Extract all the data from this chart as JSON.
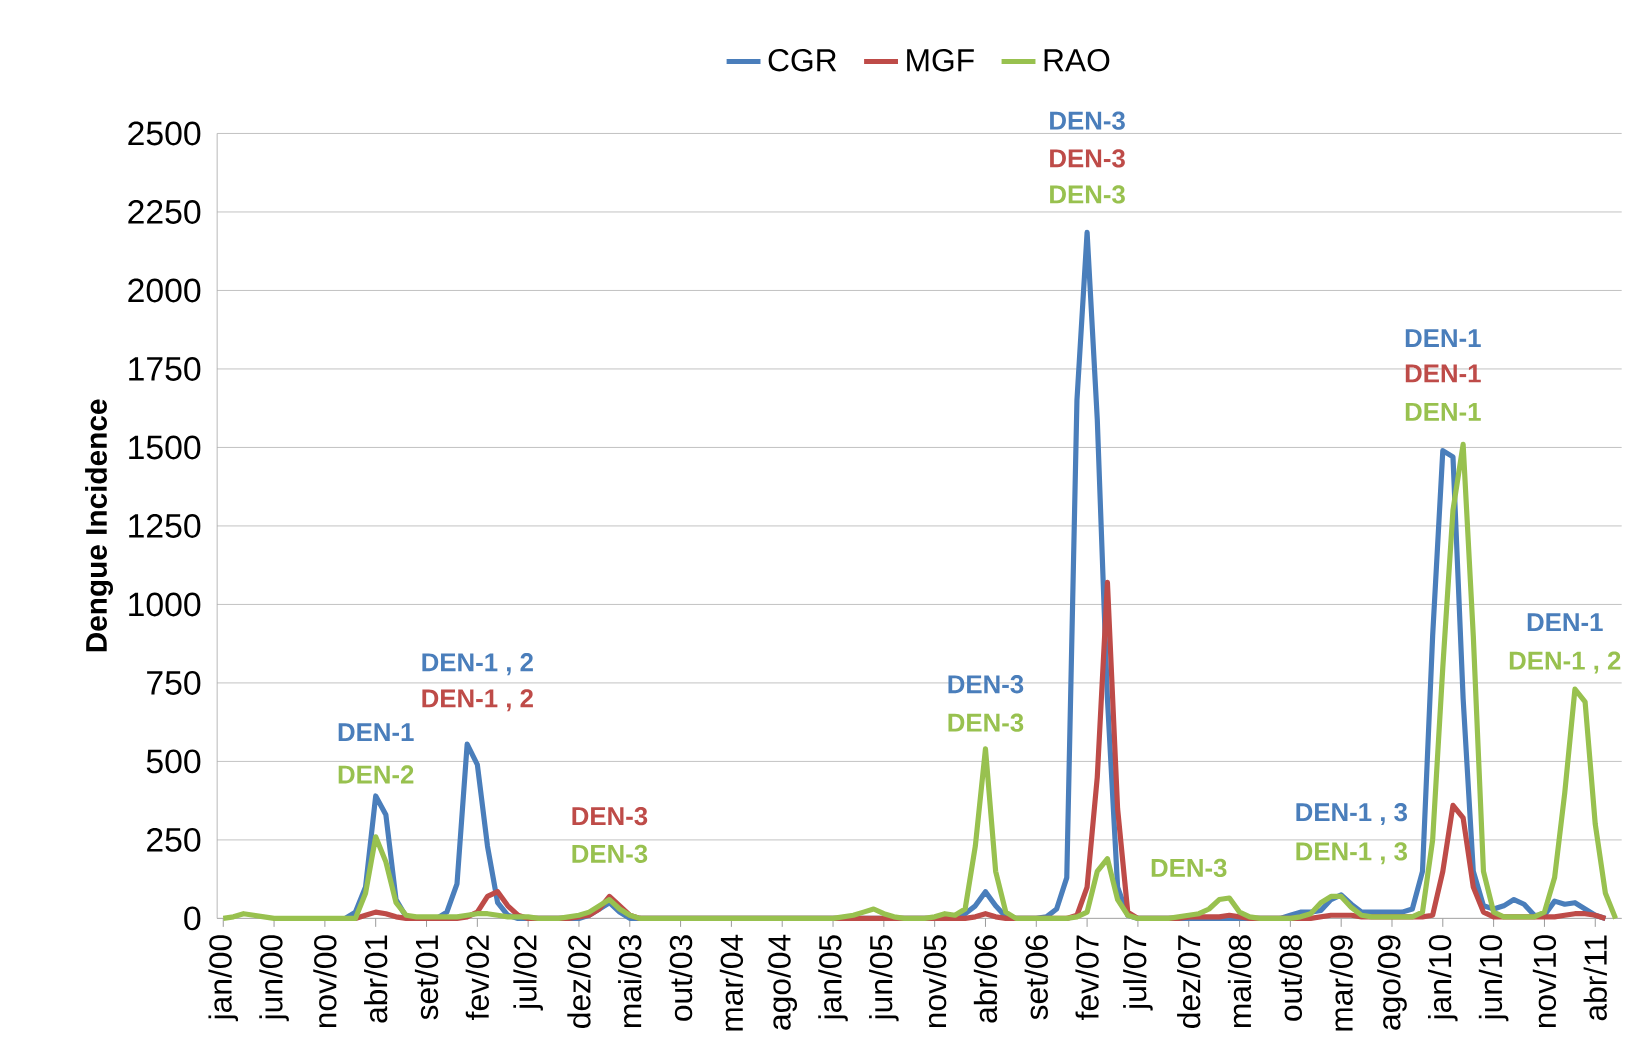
{
  "chart_data": {
    "type": "line",
    "ylabel": "Dengue Incidence",
    "categories": [
      "jan/00",
      null,
      null,
      null,
      null,
      "jun/00",
      null,
      null,
      null,
      null,
      "nov/00",
      null,
      null,
      null,
      null,
      "abr/01",
      null,
      null,
      null,
      null,
      "set/01",
      null,
      null,
      null,
      null,
      "fev/02",
      null,
      null,
      null,
      null,
      "jul/02",
      null,
      null,
      null,
      null,
      "dez/02",
      null,
      null,
      null,
      null,
      "mai/03",
      null,
      null,
      null,
      null,
      "out/03",
      null,
      null,
      null,
      null,
      "mar/04",
      null,
      null,
      null,
      null,
      "ago/04",
      null,
      null,
      null,
      null,
      "jan/05",
      null,
      null,
      null,
      null,
      "jun/05",
      null,
      null,
      null,
      null,
      "nov/05",
      null,
      null,
      null,
      null,
      "abr/06",
      null,
      null,
      null,
      null,
      "set/06",
      null,
      null,
      null,
      null,
      "fev/07",
      null,
      null,
      null,
      null,
      "jul/07",
      null,
      null,
      null,
      null,
      "dez/07",
      null,
      null,
      null,
      null,
      "mai/08",
      null,
      null,
      null,
      null,
      "out/08",
      null,
      null,
      null,
      null,
      "mar/09",
      null,
      null,
      null,
      null,
      "ago/09",
      null,
      null,
      null,
      null,
      "jan/10",
      null,
      null,
      null,
      null,
      "jun/10",
      null,
      null,
      null,
      null,
      "nov/10",
      null,
      null,
      null,
      null,
      "abr/11",
      null,
      null
    ],
    "series": [
      {
        "name": "CGR",
        "color": "#4a7ebb",
        "values": [
          null,
          null,
          null,
          null,
          null,
          null,
          null,
          null,
          null,
          null,
          null,
          null,
          0,
          20,
          100,
          390,
          330,
          60,
          5,
          0,
          null,
          0,
          20,
          110,
          555,
          490,
          230,
          50,
          10,
          0,
          null,
          null,
          null,
          null,
          null,
          0,
          10,
          30,
          50,
          20,
          0,
          null,
          null,
          null,
          null,
          null,
          null,
          null,
          null,
          null,
          null,
          null,
          null,
          null,
          null,
          null,
          null,
          null,
          null,
          null,
          null,
          null,
          null,
          null,
          null,
          null,
          null,
          null,
          null,
          null,
          null,
          null,
          0,
          15,
          40,
          85,
          40,
          5,
          0,
          null,
          0,
          5,
          30,
          130,
          1650,
          2185,
          1590,
          700,
          100,
          10,
          0,
          null,
          null,
          null,
          null,
          null,
          null,
          null,
          null,
          null,
          null,
          null,
          null,
          null,
          0,
          10,
          20,
          20,
          25,
          60,
          75,
          45,
          20,
          20,
          20,
          20,
          20,
          30,
          150,
          900,
          1490,
          1470,
          700,
          150,
          40,
          30,
          40,
          60,
          45,
          10,
          10,
          55,
          45,
          50,
          30,
          10,
          0,
          null
        ]
      },
      {
        "name": "MGF",
        "color": "#be4b48",
        "values": [
          null,
          null,
          null,
          null,
          null,
          null,
          null,
          null,
          null,
          null,
          null,
          null,
          null,
          0,
          10,
          20,
          15,
          5,
          0,
          null,
          null,
          null,
          null,
          0,
          5,
          20,
          70,
          85,
          40,
          10,
          0,
          null,
          null,
          null,
          0,
          5,
          10,
          30,
          70,
          40,
          10,
          0,
          null,
          null,
          null,
          null,
          null,
          null,
          null,
          null,
          null,
          null,
          null,
          null,
          null,
          null,
          null,
          null,
          null,
          null,
          null,
          null,
          null,
          null,
          null,
          null,
          null,
          null,
          null,
          null,
          null,
          null,
          null,
          0,
          5,
          15,
          5,
          0,
          null,
          null,
          null,
          null,
          null,
          0,
          10,
          100,
          450,
          1070,
          350,
          20,
          0,
          null,
          null,
          null,
          0,
          5,
          5,
          5,
          5,
          10,
          5,
          0,
          null,
          null,
          null,
          null,
          null,
          0,
          5,
          10,
          10,
          10,
          5,
          5,
          5,
          5,
          5,
          5,
          5,
          10,
          150,
          360,
          320,
          100,
          20,
          5,
          5,
          5,
          5,
          5,
          5,
          5,
          10,
          15,
          15,
          10,
          0,
          null
        ]
      },
      {
        "name": "RAO",
        "color": "#98c14f",
        "values": [
          0,
          5,
          15,
          10,
          5,
          0,
          0,
          0,
          0,
          0,
          0,
          0,
          0,
          0,
          80,
          260,
          180,
          50,
          10,
          5,
          5,
          5,
          5,
          5,
          10,
          15,
          15,
          10,
          5,
          5,
          5,
          0,
          0,
          0,
          5,
          10,
          20,
          40,
          60,
          30,
          10,
          0,
          0,
          0,
          0,
          0,
          0,
          0,
          0,
          0,
          0,
          0,
          0,
          0,
          0,
          0,
          0,
          0,
          0,
          0,
          0,
          5,
          10,
          20,
          30,
          15,
          5,
          0,
          0,
          0,
          5,
          15,
          10,
          30,
          230,
          540,
          150,
          20,
          0,
          0,
          0,
          0,
          0,
          0,
          5,
          20,
          150,
          190,
          60,
          10,
          0,
          0,
          0,
          0,
          5,
          10,
          15,
          30,
          60,
          65,
          20,
          5,
          0,
          0,
          0,
          0,
          5,
          15,
          50,
          70,
          70,
          35,
          10,
          5,
          5,
          5,
          5,
          5,
          20,
          250,
          800,
          1300,
          1510,
          900,
          150,
          20,
          5,
          5,
          5,
          5,
          20,
          130,
          400,
          730,
          690,
          300,
          80,
          0
        ]
      }
    ],
    "ylim": [
      0,
      2500
    ],
    "yticks": [
      0,
      250,
      500,
      750,
      1000,
      1250,
      1500,
      1750,
      2000,
      2250,
      2500
    ],
    "grid": "y",
    "legend": "top",
    "marker": "none",
    "line_style": "solid",
    "annotations": [
      "DEN-1",
      "DEN-2",
      "DEN-1 , 2",
      "DEN-1 , 2",
      "DEN-3",
      "DEN-3",
      "DEN-3",
      "DEN-3",
      "DEN-3",
      "DEN-3",
      "DEN-3",
      "DEN-3",
      "DEN-1 , 3",
      "DEN-1 , 3",
      "DEN-1",
      "DEN-1",
      "DEN-1",
      "DEN-1",
      "DEN-1 , 2"
    ]
  }
}
